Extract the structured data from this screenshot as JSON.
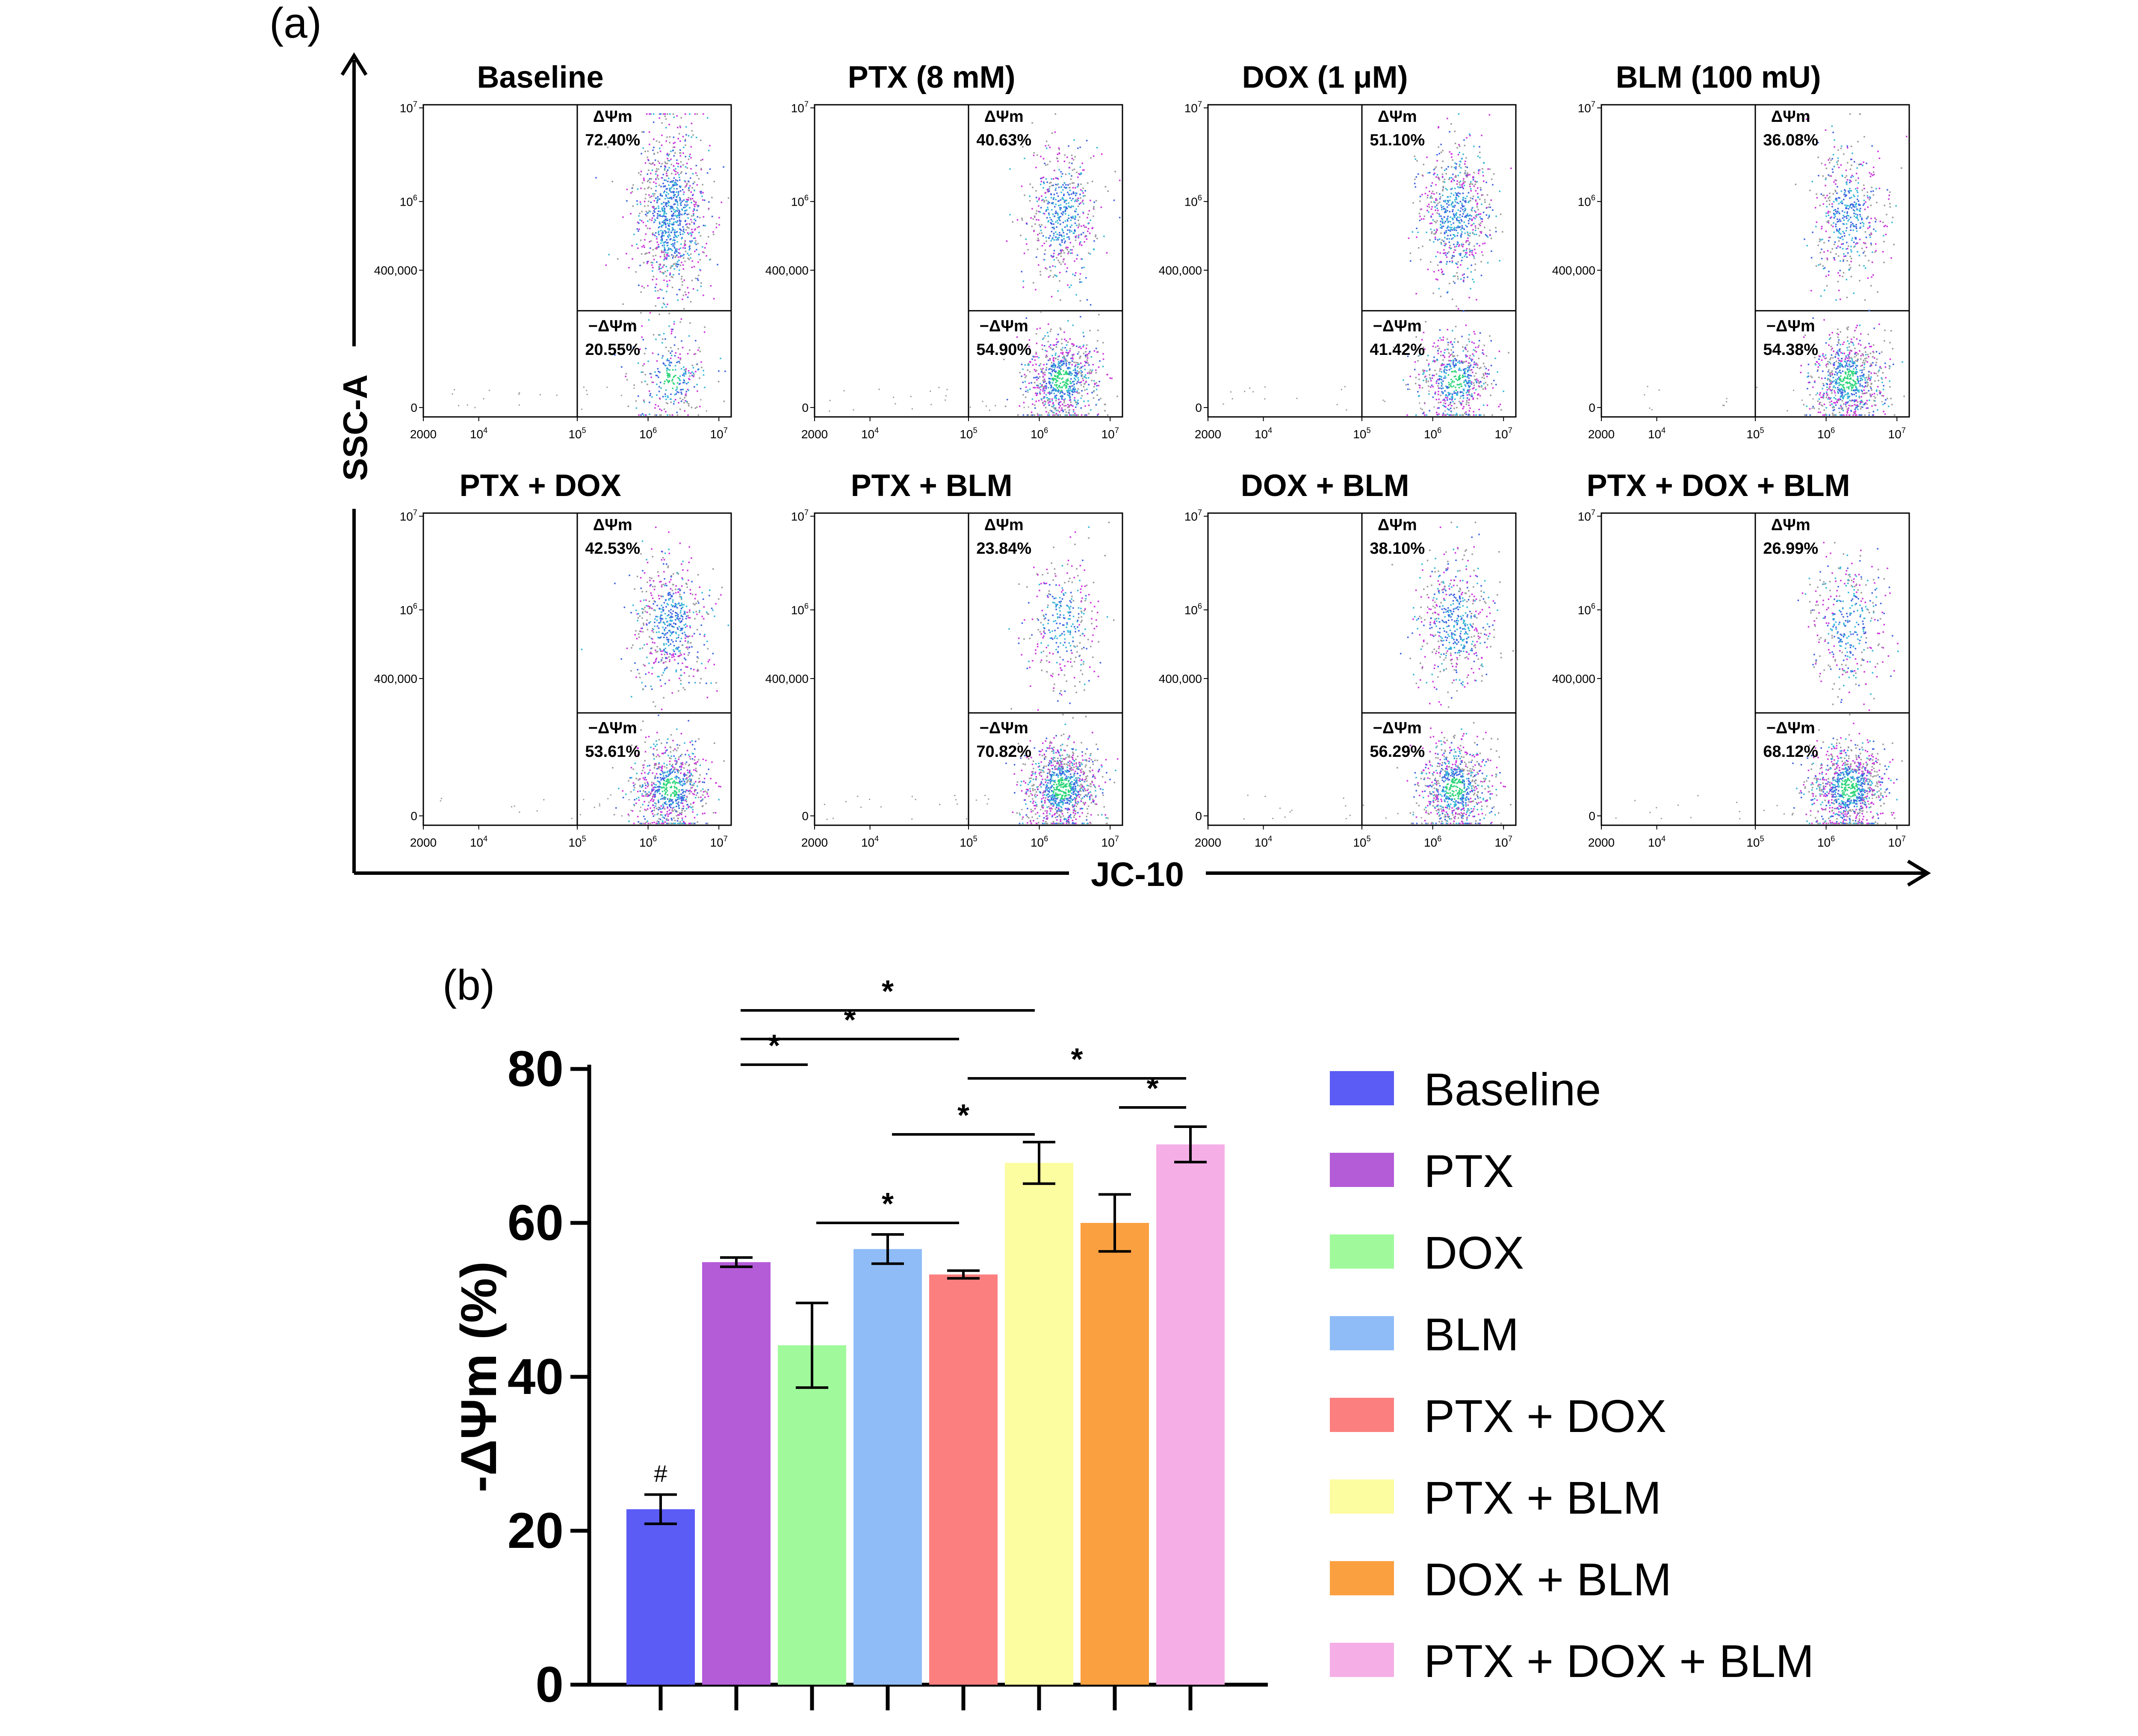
{
  "panel_a": {
    "label": "(a)",
    "y_axis_label": "SSC-A",
    "x_axis_label": "JC-10",
    "y_ticks": [
      {
        "base": "10",
        "exp": "7"
      },
      {
        "base": "10",
        "exp": "6"
      },
      {
        "base": "400,000",
        "exp": ""
      },
      {
        "base": "0",
        "exp": ""
      }
    ],
    "x_ticks": [
      {
        "base": "2000",
        "exp": ""
      },
      {
        "base": "10",
        "exp": "4"
      },
      {
        "base": "10",
        "exp": "5"
      },
      {
        "base": "10",
        "exp": "6"
      },
      {
        "base": "10",
        "exp": "7"
      }
    ],
    "gate_upper_label": "ΔΨm",
    "gate_lower_label": "−ΔΨm",
    "plots": [
      {
        "title": "Baseline",
        "upper": "72.40%",
        "lower": "20.55%",
        "split": 0.66
      },
      {
        "title": "PTX (8 mM)",
        "upper": "40.63%",
        "lower": "54.90%",
        "split": 0.66
      },
      {
        "title": "DOX (1 μM)",
        "upper": "51.10%",
        "lower": "41.42%",
        "split": 0.66
      },
      {
        "title": "BLM (100 mU)",
        "upper": "36.08%",
        "lower": "54.38%",
        "split": 0.66
      },
      {
        "title": "PTX + DOX",
        "upper": "42.53%",
        "lower": "53.61%",
        "split": 0.64
      },
      {
        "title": "PTX + BLM",
        "upper": "23.84%",
        "lower": "70.82%",
        "split": 0.64
      },
      {
        "title": "DOX + BLM",
        "upper": "38.10%",
        "lower": "56.29%",
        "split": 0.64
      },
      {
        "title": "PTX + DOX + BLM",
        "upper": "26.99%",
        "lower": "68.12%",
        "split": 0.64
      }
    ]
  },
  "panel_b": {
    "label": "(b)",
    "significance_symbol": "*",
    "baseline_marker": "#",
    "legend_position": "right"
  },
  "colors": {
    "dots_gray": "#9a9a9a",
    "dots_magenta": "#cc33dd",
    "dots_blue": "#3f63e0",
    "dots_cyan": "#37b8d8",
    "dots_green": "#2fd67a"
  },
  "chart_data": {
    "type": "bar",
    "title": "",
    "xlabel": "",
    "ylabel": "-ΔΨm (%)",
    "ylim": [
      0,
      80
    ],
    "yticks": [
      "0",
      "20",
      "40",
      "60",
      "80"
    ],
    "categories": [
      "Baseline",
      "PTX",
      "DOX",
      "BLM",
      "PTX + DOX",
      "PTX + BLM",
      "DOX + BLM",
      "PTX + DOX + BLM"
    ],
    "values": [
      22.8,
      54.9,
      44.1,
      56.6,
      53.3,
      67.8,
      60.0,
      70.2
    ],
    "errors": [
      1.9,
      0.6,
      5.5,
      1.9,
      0.5,
      2.7,
      3.7,
      2.3
    ],
    "colors": [
      "#5b5bf5",
      "#b45bd8",
      "#a0fa9c",
      "#8fbcf7",
      "#fb7f7f",
      "#fcfca0",
      "#fba040",
      "#f5aee6"
    ],
    "significance": [
      {
        "from": 1,
        "to": 2,
        "label": "*"
      },
      {
        "from": 1,
        "to": 4,
        "label": "*"
      },
      {
        "from": 1,
        "to": 5,
        "label": "*"
      },
      {
        "from": 2,
        "to": 4,
        "label": "*"
      },
      {
        "from": 3,
        "to": 5,
        "label": "*"
      },
      {
        "from": 4,
        "to": 7,
        "label": "*"
      },
      {
        "from": 6,
        "to": 7,
        "label": "*"
      }
    ]
  }
}
